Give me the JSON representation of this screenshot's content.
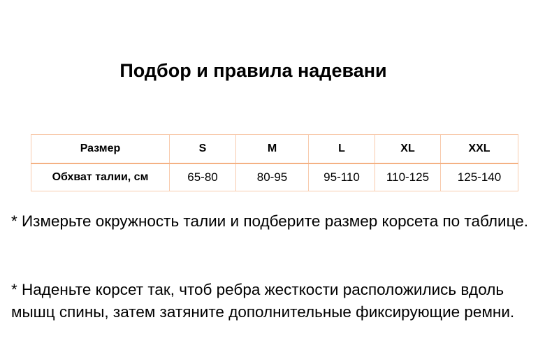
{
  "title": "Подбор и правила надевани",
  "table": {
    "header": [
      "Размер",
      "S",
      "M",
      "L",
      "XL",
      "XXL"
    ],
    "row": [
      "Обхват талии, см",
      "65-80",
      "80-95",
      "95-110",
      "110-125",
      "125-140"
    ]
  },
  "paragraphs": [
    "* Измерьте окружность талии и подберите размер корсета по таблице.",
    "* Наденьте корсет так, чтоб ребра жесткости расположились вдоль мышц спины, затем затяните дополнительные фиксирующие ремни."
  ],
  "colors": {
    "border": "#f8cbad",
    "header_border": "#f4b183"
  }
}
